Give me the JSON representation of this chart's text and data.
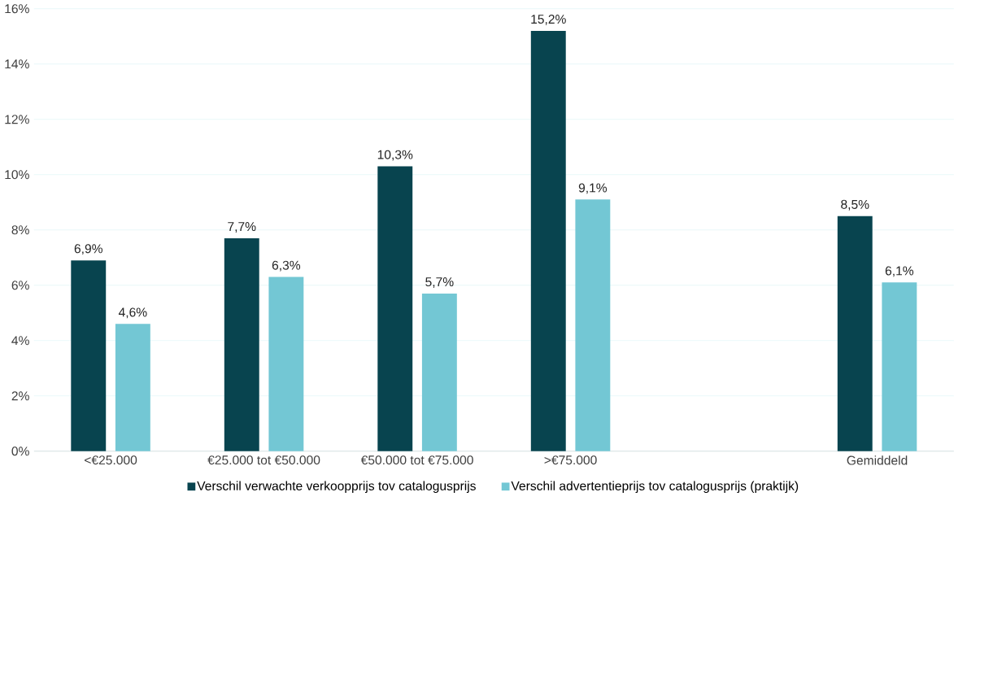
{
  "chart_data": {
    "type": "bar",
    "categories": [
      "<€25.000",
      "€25.000 tot €50.000",
      "€50.000 tot €75.000",
      ">€75.000",
      null,
      "Gemiddeld"
    ],
    "series": [
      {
        "name": "Verschil verwachte verkoopprijs tov catalogusprijs",
        "color": "#08444f",
        "values": [
          6.9,
          7.7,
          10.3,
          15.2,
          null,
          8.5
        ],
        "value_labels": [
          "6,9%",
          "7,7%",
          "10,3%",
          "15,2%",
          null,
          "8,5%"
        ]
      },
      {
        "name": "Verschil advertentieprijs tov catalogusprijs  (praktijk)",
        "color": "#73c7d4",
        "values": [
          4.6,
          6.3,
          5.7,
          9.1,
          null,
          6.1
        ],
        "value_labels": [
          "4,6%",
          "6,3%",
          "5,7%",
          "9,1%",
          null,
          "6,1%"
        ]
      }
    ],
    "ylim": [
      0,
      16
    ],
    "yticks": [
      {
        "value": 0,
        "label": "0%"
      },
      {
        "value": 2,
        "label": "2%"
      },
      {
        "value": 4,
        "label": "4%"
      },
      {
        "value": 6,
        "label": "6%"
      },
      {
        "value": 8,
        "label": "8%"
      },
      {
        "value": 10,
        "label": "10%"
      },
      {
        "value": 12,
        "label": "12%"
      },
      {
        "value": 14,
        "label": "14%"
      },
      {
        "value": 16,
        "label": "16%"
      }
    ],
    "grid": "y",
    "legend": "bottom"
  }
}
